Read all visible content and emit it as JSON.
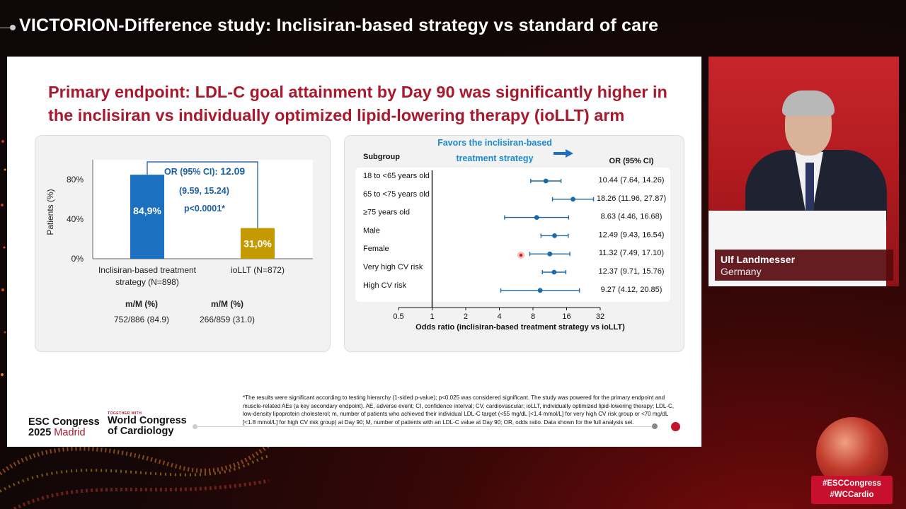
{
  "page": {
    "title": "VICTORION-Difference study: Inclisiran-based strategy vs standard of care"
  },
  "slide": {
    "headline": "Primary endpoint: LDL-C goal attainment by Day 90 was significantly higher in the inclisiran vs individually optimized lipid-lowering therapy (ioLLT) arm",
    "footnote": "*The results were significant according to testing hierarchy (1-sided p-value); p<0.025 was considered significant. The study was powered for the primary endpoint and muscle-related AEs (a key secondary endpoint). AE, adverse event; CI, confidence interval; CV, cardiovascular; ioLLT, individually optimized lipid-lowering therapy; LDL-C, low-density lipoprotein cholesterol; m, number of patients who achieved their individual LDL-C target (<55 mg/dL [<1.4 mmol/L] for very high CV risk group or <70 mg/dL [<1.8 mmol/L] for high CV risk group) at Day 90; M, number of patients with an LDL-C value at Day 90; OR, odds ratio. Data shown for the full analysis set.",
    "esc_logo": {
      "line1": "ESC Congress",
      "year": "2025",
      "city": "Madrid"
    },
    "wcc_logo": {
      "together": "TOGETHER WITH",
      "line1": "World Congress",
      "line2": "of Cardiology"
    }
  },
  "chart_data": [
    {
      "type": "bar",
      "ylabel": "Patients (%)",
      "ylim": [
        0,
        100
      ],
      "yticks": [
        "0%",
        "40%",
        "80%"
      ],
      "categories": [
        "Inclisiran-based treatment strategy (N=898)",
        "ioLLT (N=872)"
      ],
      "category_lines": [
        [
          "Inclisiran-based treatment",
          "strategy (N=898)"
        ],
        [
          "ioLLT (N=872)"
        ]
      ],
      "values": [
        84.9,
        31.0
      ],
      "data_labels": [
        "84,9%",
        "31,0%"
      ],
      "colors": [
        "#1b70c0",
        "#c49a00"
      ],
      "annotation": {
        "line1_label": "OR (95% CI): ",
        "line1_value": "12.09",
        "line2": "(9.59, 15.24)",
        "line3": "p<0.0001*"
      },
      "table": {
        "header": "m/M (%)",
        "rows": [
          "752/886 (84.9)",
          "266/859 (31.0)"
        ]
      }
    },
    {
      "type": "scatter",
      "subtype": "forest",
      "favors": {
        "line1": "Favors the inclisiran-based",
        "line2": "treatment strategy"
      },
      "col_subgroup": "Subgroup",
      "col_or": "OR (95% CI)",
      "xlabel": "Odds ratio (inclisiran-based treatment strategy vs ioLLT)",
      "xscale": "log2",
      "xticks": [
        0.5,
        1,
        2,
        4,
        8,
        16,
        32
      ],
      "xtick_labels": [
        "0.5",
        "1",
        "2",
        "4",
        "8",
        "16",
        "32"
      ],
      "reference_line": 1,
      "color": "#1a6aa8",
      "rows": [
        {
          "subgroup": "18 to <65 years old",
          "or": 10.44,
          "lo": 7.64,
          "hi": 14.26,
          "label": "10.44 (7.64, 14.26)"
        },
        {
          "subgroup": "65 to <75 years old",
          "or": 18.26,
          "lo": 11.96,
          "hi": 27.87,
          "label": "18.26 (11.96, 27.87)"
        },
        {
          "subgroup": "≥75 years old",
          "or": 8.63,
          "lo": 4.46,
          "hi": 16.68,
          "label": "8.63 (4.46, 16.68)"
        },
        {
          "subgroup": "Male",
          "or": 12.49,
          "lo": 9.43,
          "hi": 16.54,
          "label": "12.49 (9.43, 16.54)"
        },
        {
          "subgroup": "Female",
          "or": 11.32,
          "lo": 7.49,
          "hi": 17.1,
          "label": "11.32 (7.49, 17.10)"
        },
        {
          "subgroup": "Very high CV risk",
          "or": 12.37,
          "lo": 9.71,
          "hi": 15.76,
          "label": "12.37 (9.71, 15.76)"
        },
        {
          "subgroup": "High CV risk",
          "or": 9.27,
          "lo": 4.12,
          "hi": 20.85,
          "label": "9.27 (4.12, 20.85)"
        }
      ]
    }
  ],
  "speaker": {
    "name": "Ulf Landmesser",
    "country": "Germany"
  },
  "hashtags": [
    "#ESCCongress",
    "#WCCardio"
  ]
}
